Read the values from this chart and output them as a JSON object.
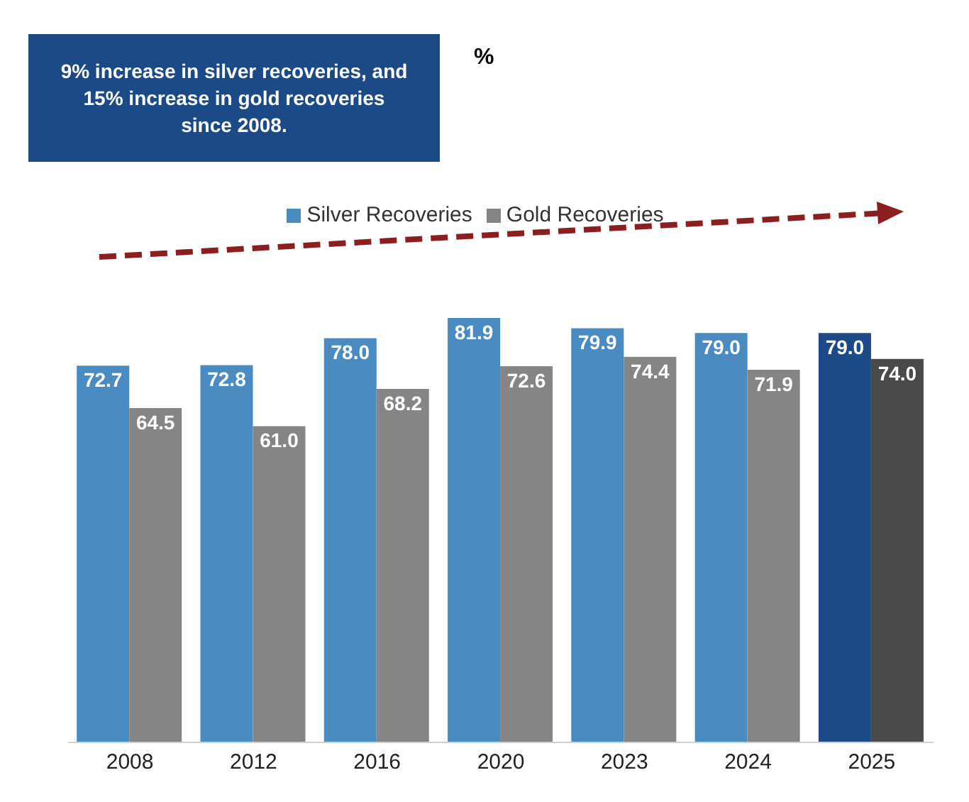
{
  "chart_data": {
    "type": "bar",
    "annotations": [
      "9% increase in silver recoveries, and 15% increase in gold recoveries since 2008.",
      "%"
    ],
    "categories": [
      "2008",
      "2012",
      "2016",
      "2020",
      "2023",
      "2024",
      "2025"
    ],
    "series": [
      {
        "name": "Silver Recoveries",
        "color": "#4a8bc2",
        "colors": [
          "#4a8bc2",
          "#4a8bc2",
          "#4a8bc2",
          "#4a8bc2",
          "#4a8bc2",
          "#4a8bc2",
          "#1b4a87"
        ],
        "values": [
          72.7,
          72.8,
          78.0,
          81.9,
          79.9,
          79.0,
          79.0
        ],
        "value_labels": [
          "72.7",
          "72.8",
          "78.0",
          "81.9",
          "79.9",
          "79.0",
          "79.0"
        ]
      },
      {
        "name": "Gold Recoveries",
        "color": "#858585",
        "colors": [
          "#858585",
          "#858585",
          "#858585",
          "#858585",
          "#858585",
          "#858585",
          "#4a4a4a"
        ],
        "values": [
          64.5,
          61.0,
          68.2,
          72.6,
          74.4,
          71.9,
          74.0
        ],
        "value_labels": [
          "64.5",
          "61.0",
          "68.2",
          "72.6",
          "74.4",
          "71.9",
          "74.0"
        ]
      }
    ],
    "legend": "top"
  }
}
